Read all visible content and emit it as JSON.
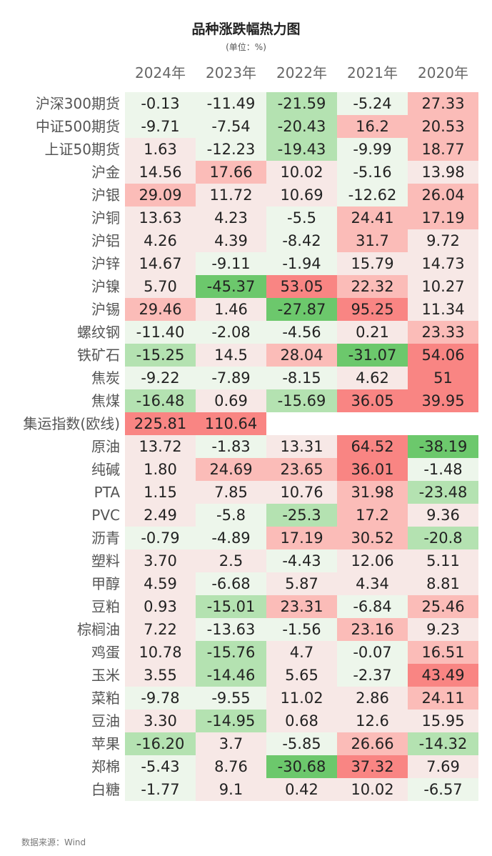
{
  "chart_data": {
    "type": "heatmap",
    "title": "品种涨跌幅热力图",
    "subtitle": "(单位：%)",
    "columns": [
      "2024年",
      "2023年",
      "2022年",
      "2021年",
      "2020年"
    ],
    "rows": [
      {
        "label": "沪深300期货",
        "values": [
          "-0.13",
          "-11.49",
          "-21.59",
          "-5.24",
          "27.33"
        ]
      },
      {
        "label": "中证500期货",
        "values": [
          "-9.71",
          "-7.54",
          "-20.43",
          "16.2",
          "20.53"
        ]
      },
      {
        "label": "上证50期货",
        "values": [
          "1.63",
          "-12.23",
          "-19.43",
          "-9.99",
          "18.77"
        ]
      },
      {
        "label": "沪金",
        "values": [
          "14.56",
          "17.66",
          "10.02",
          "-5.16",
          "13.98"
        ]
      },
      {
        "label": "沪银",
        "values": [
          "29.09",
          "11.72",
          "10.69",
          "-12.62",
          "26.04"
        ]
      },
      {
        "label": "沪铜",
        "values": [
          "13.63",
          "4.23",
          "-5.5",
          "24.41",
          "17.19"
        ]
      },
      {
        "label": "沪铝",
        "values": [
          "4.26",
          "4.39",
          "-8.42",
          "31.7",
          "9.72"
        ]
      },
      {
        "label": "沪锌",
        "values": [
          "14.67",
          "-9.11",
          "-1.94",
          "15.79",
          "14.73"
        ]
      },
      {
        "label": "沪镍",
        "values": [
          "5.70",
          "-45.37",
          "53.05",
          "22.32",
          "10.27"
        ]
      },
      {
        "label": "沪锡",
        "values": [
          "29.46",
          "1.46",
          "-27.87",
          "95.25",
          "11.34"
        ]
      },
      {
        "label": "螺纹钢",
        "values": [
          "-11.40",
          "-2.08",
          "-4.56",
          "0.21",
          "23.33"
        ]
      },
      {
        "label": "铁矿石",
        "values": [
          "-15.25",
          "14.5",
          "28.04",
          "-31.07",
          "54.06"
        ]
      },
      {
        "label": "焦炭",
        "values": [
          "-9.22",
          "-7.89",
          "-8.15",
          "4.62",
          "51"
        ]
      },
      {
        "label": "焦煤",
        "values": [
          "-16.48",
          "0.69",
          "-15.69",
          "36.05",
          "39.95"
        ]
      },
      {
        "label": "集运指数(欧线)",
        "values": [
          "225.81",
          "110.64",
          "",
          "",
          ""
        ]
      },
      {
        "label": "原油",
        "values": [
          "13.72",
          "-1.83",
          "13.31",
          "64.52",
          "-38.19"
        ]
      },
      {
        "label": "纯碱",
        "values": [
          "1.80",
          "24.69",
          "23.65",
          "36.01",
          "-1.48"
        ]
      },
      {
        "label": "PTA",
        "values": [
          "1.15",
          "7.85",
          "10.76",
          "31.98",
          "-23.48"
        ]
      },
      {
        "label": "PVC",
        "values": [
          "2.49",
          "-5.8",
          "-25.3",
          "17.2",
          "9.36"
        ]
      },
      {
        "label": "沥青",
        "values": [
          "-0.79",
          "-4.89",
          "17.19",
          "30.52",
          "-20.8"
        ]
      },
      {
        "label": "塑料",
        "values": [
          "3.70",
          "2.5",
          "-4.43",
          "12.06",
          "5.11"
        ]
      },
      {
        "label": "甲醇",
        "values": [
          "4.59",
          "-6.68",
          "5.87",
          "4.34",
          "8.81"
        ]
      },
      {
        "label": "豆粕",
        "values": [
          "0.93",
          "-15.01",
          "23.31",
          "-6.84",
          "25.46"
        ]
      },
      {
        "label": "棕榈油",
        "values": [
          "7.22",
          "-13.63",
          "-1.56",
          "23.16",
          "9.23"
        ]
      },
      {
        "label": "鸡蛋",
        "values": [
          "10.78",
          "-15.76",
          "4.7",
          "-0.07",
          "16.51"
        ]
      },
      {
        "label": "玉米",
        "values": [
          "3.55",
          "-14.46",
          "5.65",
          "-2.37",
          "43.49"
        ]
      },
      {
        "label": "菜粕",
        "values": [
          "-9.78",
          "-9.55",
          "11.02",
          "2.86",
          "24.11"
        ]
      },
      {
        "label": "豆油",
        "values": [
          "3.30",
          "-14.95",
          "0.68",
          "12.6",
          "15.95"
        ]
      },
      {
        "label": "苹果",
        "values": [
          "-16.20",
          "3.7",
          "-5.85",
          "26.66",
          "-14.32"
        ]
      },
      {
        "label": "郑棉",
        "values": [
          "-5.43",
          "8.76",
          "-30.68",
          "37.32",
          "7.69"
        ]
      },
      {
        "label": "白糖",
        "values": [
          "-1.77",
          "9.1",
          "0.42",
          "10.02",
          "-6.57"
        ]
      }
    ],
    "colors": {
      "pos_light": "#f7e8e6",
      "pos_mid": "#fbbcb8",
      "pos_strong": "#f98583",
      "neg_light": "#edf6eb",
      "neg_mid": "#b4e2b1",
      "neg_strong": "#6cc86c",
      "empty": "#ffffff"
    }
  },
  "source": "数据来源：Wind"
}
